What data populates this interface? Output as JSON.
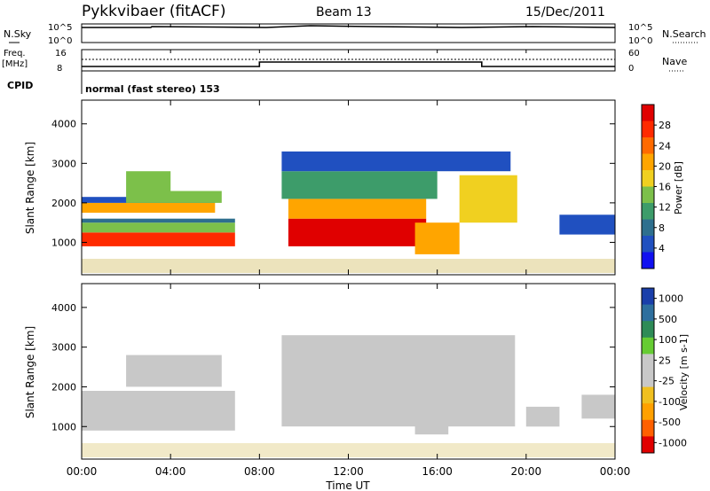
{
  "header": {
    "title": "Pykkvibaer (fitACF)",
    "beam": "Beam 13",
    "date": "15/Dec/2011"
  },
  "top_panels": {
    "nsky_label": "N.Sky",
    "nsearch_label": "N.Search",
    "freq_label_line1": "Freq.",
    "freq_label_line2": "[MHz]",
    "nave_label": "Nave",
    "cpid_label": "CPID",
    "cpid_text": "normal (fast stereo) 153",
    "nsky_ticks": [
      "10^5",
      "10^0"
    ],
    "nsearch_ticks": [
      "10^5",
      "10^0"
    ],
    "freq_ticks": [
      "16",
      "8"
    ],
    "nave_ticks": [
      "60",
      "0"
    ],
    "freq_values": [
      {
        "t": 0,
        "f": 10
      },
      {
        "t": 8,
        "f": 10
      },
      {
        "t": 8,
        "f": 12
      },
      {
        "t": 18,
        "f": 12
      },
      {
        "t": 18,
        "f": 10
      },
      {
        "t": 24,
        "f": 10
      }
    ]
  },
  "colors": {
    "power": [
      "#1010f0",
      "#2050c0",
      "#2e6f8e",
      "#3d9c6a",
      "#7cc04a",
      "#f0d020",
      "#ffa500",
      "#ff6a00",
      "#ff2a00",
      "#e00000"
    ],
    "velocity": [
      "#e00000",
      "#ff6000",
      "#ffa000",
      "#f0c020",
      "#c8c8c8",
      "#c8c8c8",
      "#66cc33",
      "#2e8b57",
      "#2e6f9e",
      "#1a3faa"
    ]
  },
  "chart_data": [
    {
      "type": "heatmap",
      "name": "power",
      "ylabel": "Slant Range [km]",
      "xlabel": "Time UT",
      "xlim": [
        0,
        24
      ],
      "ylim": [
        180,
        4600
      ],
      "yticks": [
        "1000",
        "2000",
        "3000",
        "4000"
      ],
      "xticks": [
        "00:00",
        "04:00",
        "08:00",
        "12:00",
        "16:00",
        "20:00",
        "00:00"
      ],
      "colorbar_label": "Power [dB]",
      "colorbar_ticks": [
        "4",
        "8",
        "12",
        "16",
        "20",
        "24",
        "28"
      ],
      "colorbar_range": [
        0,
        32
      ],
      "regions": [
        {
          "t0": 0,
          "t1": 6.9,
          "r0": 900,
          "r1": 1250,
          "v": 27
        },
        {
          "t0": 0,
          "t1": 6.9,
          "r0": 1250,
          "r1": 1500,
          "v": 15
        },
        {
          "t0": 0,
          "t1": 6.9,
          "r0": 1500,
          "r1": 1600,
          "v": 7
        },
        {
          "t0": 0,
          "t1": 6.0,
          "r0": 1750,
          "r1": 2000,
          "v": 20
        },
        {
          "t0": 0,
          "t1": 6.0,
          "r0": 2000,
          "r1": 2150,
          "v": 6
        },
        {
          "t0": 2.0,
          "t1": 6.3,
          "r0": 2000,
          "r1": 2300,
          "v": 13
        },
        {
          "t0": 2.0,
          "t1": 4.0,
          "r0": 2300,
          "r1": 2800,
          "v": 14
        },
        {
          "t0": 9.3,
          "t1": 15.5,
          "r0": 900,
          "r1": 1600,
          "v": 29
        },
        {
          "t0": 9.3,
          "t1": 15.5,
          "r0": 1600,
          "r1": 2100,
          "v": 20
        },
        {
          "t0": 9.0,
          "t1": 16.0,
          "r0": 2100,
          "r1": 2800,
          "v": 12
        },
        {
          "t0": 9.0,
          "t1": 19.3,
          "r0": 2800,
          "r1": 3300,
          "v": 6
        },
        {
          "t0": 15.0,
          "t1": 17.0,
          "r0": 700,
          "r1": 1500,
          "v": 22
        },
        {
          "t0": 17.0,
          "t1": 19.6,
          "r0": 1500,
          "r1": 2700,
          "v": 18
        },
        {
          "t0": 21.5,
          "t1": 24,
          "r0": 1200,
          "r1": 1700,
          "v": 6
        }
      ]
    },
    {
      "type": "heatmap",
      "name": "velocity",
      "ylabel": "Slant Range [km]",
      "xlabel": "Time UT",
      "xlim": [
        0,
        24
      ],
      "ylim": [
        180,
        4600
      ],
      "yticks": [
        "1000",
        "2000",
        "3000",
        "4000"
      ],
      "xticks": [
        "00:00",
        "04:00",
        "08:00",
        "12:00",
        "16:00",
        "20:00",
        "00:00"
      ],
      "colorbar_label": "Velocity [m s-1]",
      "colorbar_ticks": [
        "1000",
        "500",
        "100",
        "25",
        "-25",
        "-100",
        "-500",
        "-1000"
      ],
      "colorbar_range": [
        -1500,
        1500
      ],
      "regions": [
        {
          "t0": 0,
          "t1": 6.9,
          "r0": 900,
          "r1": 1900,
          "v": -120
        },
        {
          "t0": 2.0,
          "t1": 6.3,
          "r0": 2000,
          "r1": 2800,
          "v": 0
        },
        {
          "t0": 9.0,
          "t1": 19.5,
          "r0": 1000,
          "r1": 3300,
          "v": 0
        },
        {
          "t0": 15.0,
          "t1": 16.5,
          "r0": 800,
          "r1": 1600,
          "v": 60
        },
        {
          "t0": 20.0,
          "t1": 21.5,
          "r0": 1000,
          "r1": 1500,
          "v": 200
        },
        {
          "t0": 22.5,
          "t1": 24,
          "r0": 1200,
          "r1": 1800,
          "v": -150
        }
      ]
    }
  ]
}
